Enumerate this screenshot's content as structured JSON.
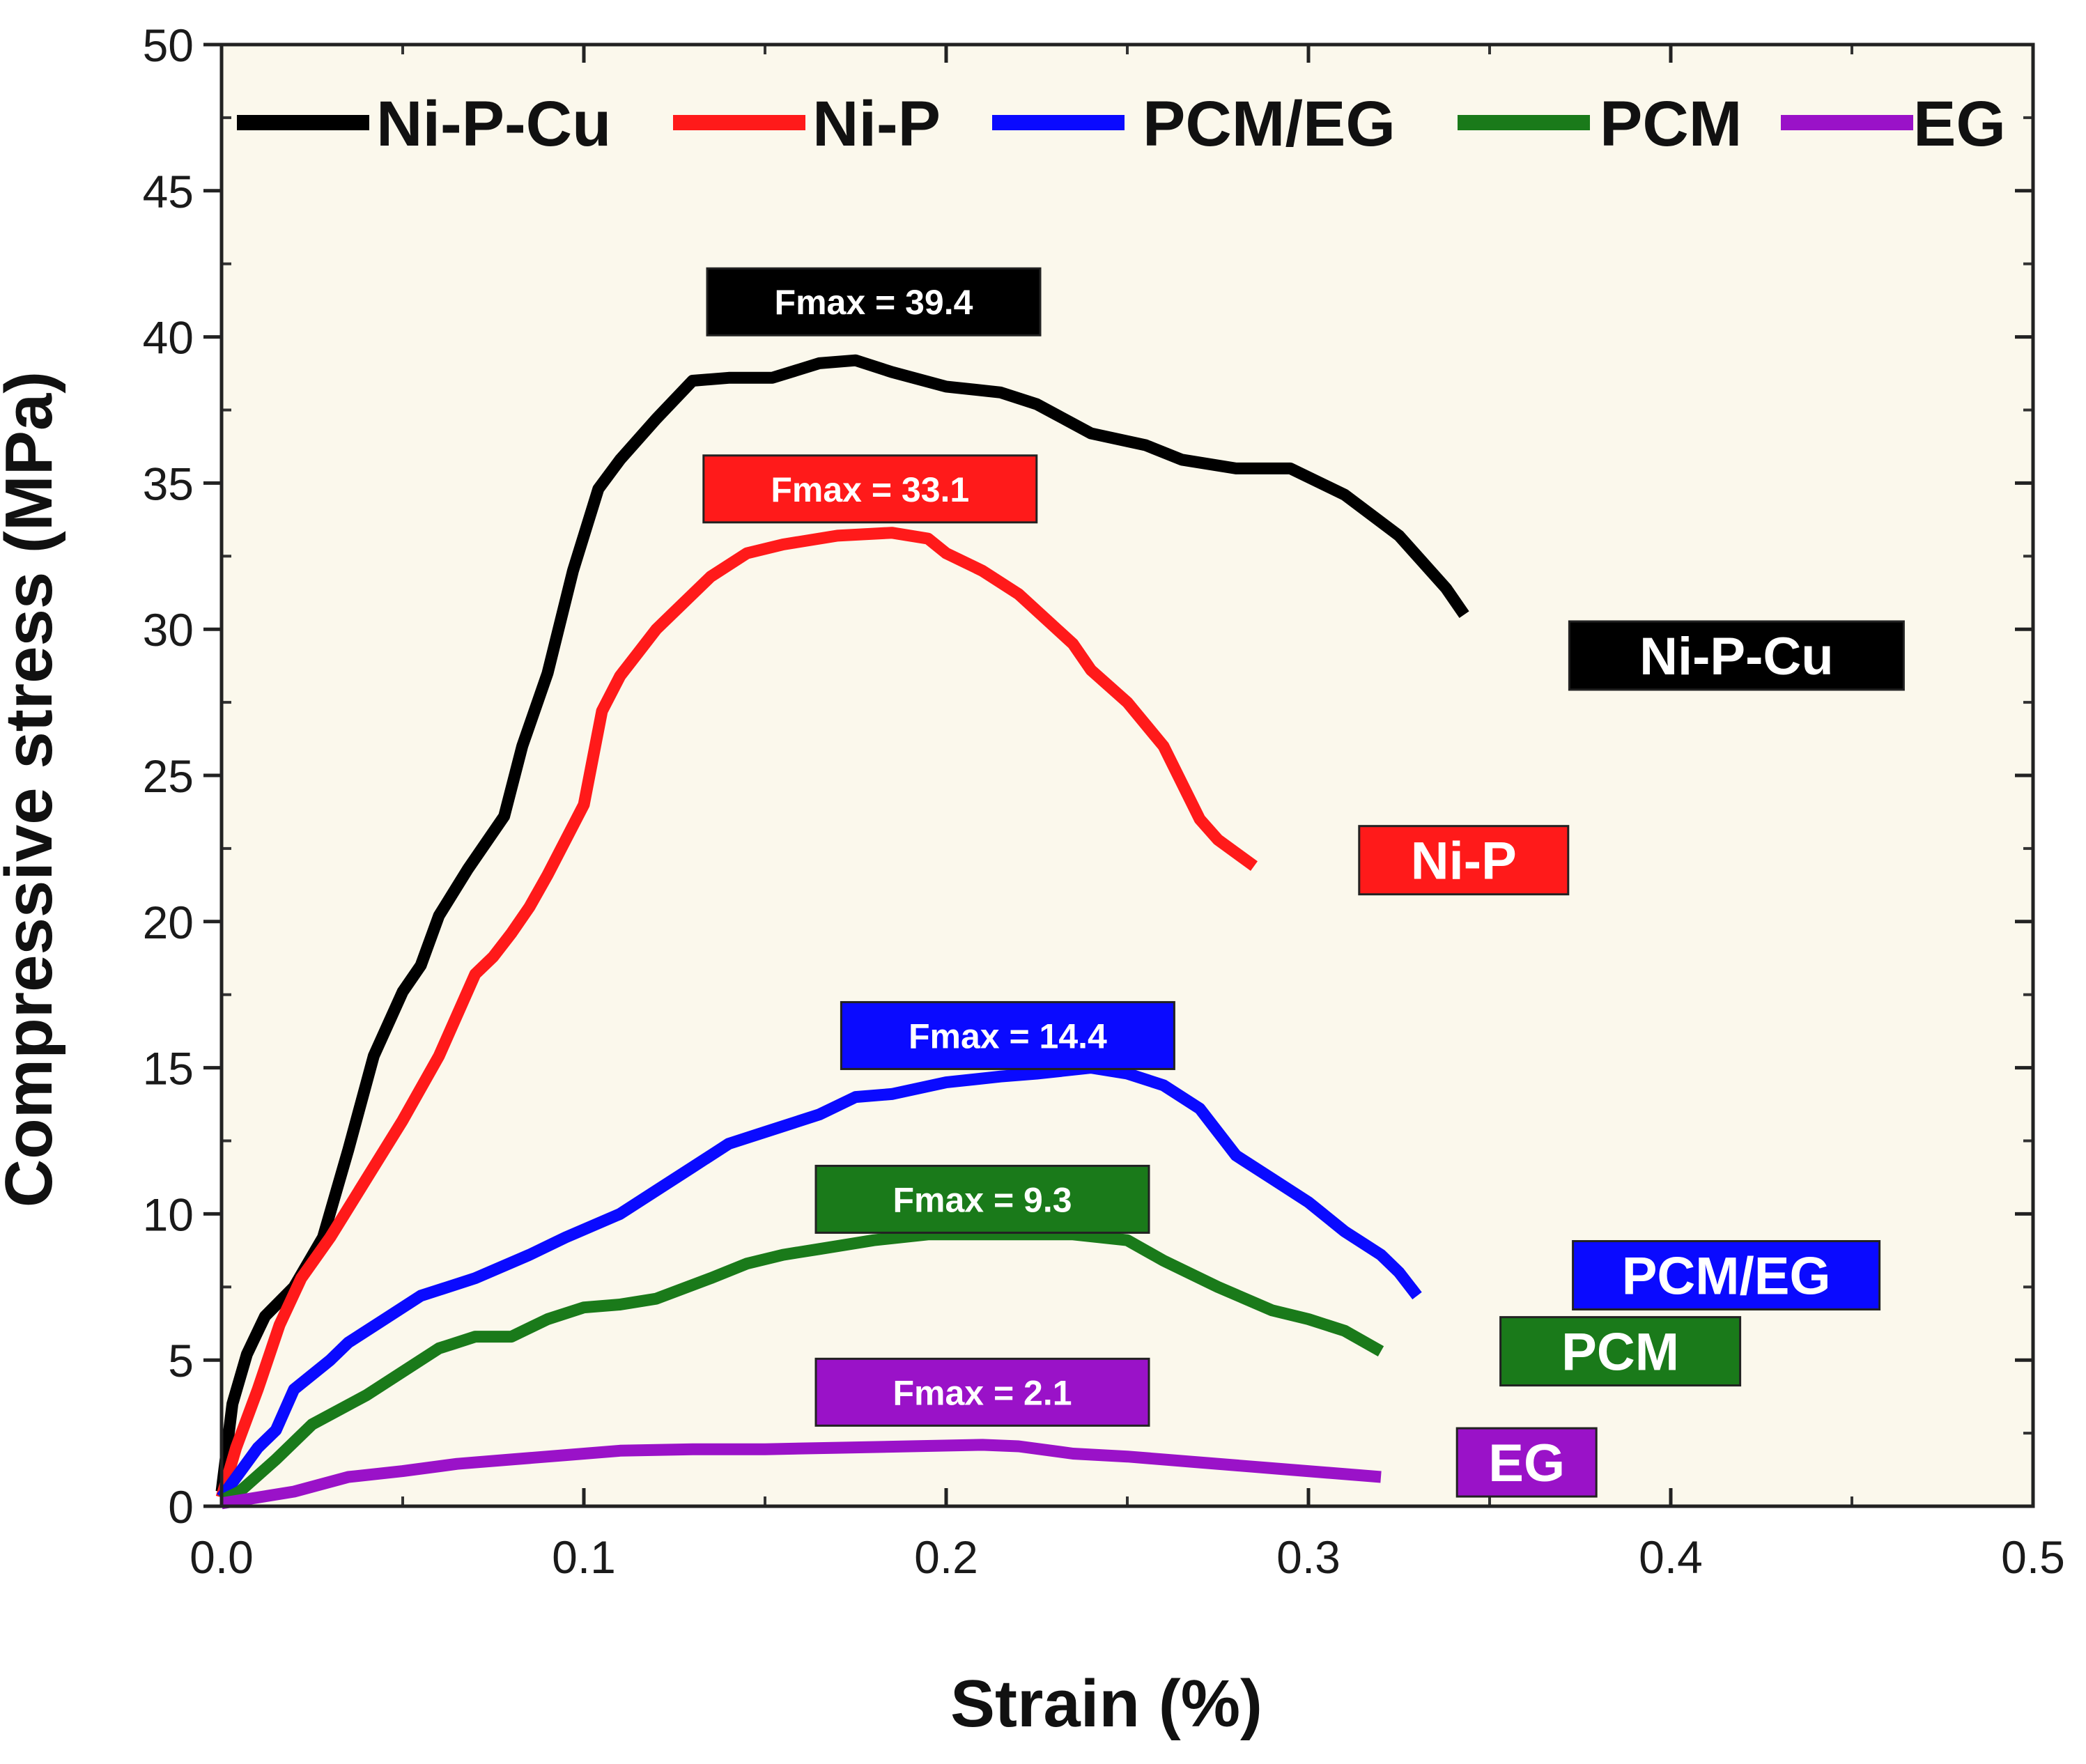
{
  "chart_data": {
    "type": "line",
    "title": "",
    "xlabel": "Strain (%)",
    "ylabel": "Compressive stress (MPa)",
    "xlim": [
      0,
      0.5
    ],
    "ylim": [
      0,
      50
    ],
    "xticks": [
      0,
      0.1,
      0.2,
      0.3,
      0.4,
      0.5
    ],
    "xtick_labels": [
      "0.0",
      "0.1",
      "0.2",
      "0.3",
      "0.4",
      "0.5"
    ],
    "yticks": [
      0,
      5,
      10,
      15,
      20,
      25,
      30,
      35,
      40,
      45,
      50
    ],
    "ytick_labels": [
      "0",
      "5",
      "10",
      "15",
      "20",
      "25",
      "30",
      "35",
      "40",
      "45",
      "50"
    ],
    "x_minor_step": 0.05,
    "y_minor_step": 2.5,
    "grid": false,
    "background": "#fbf8ec",
    "legend_position": "top",
    "series": [
      {
        "name": "Ni-P-Cu",
        "color": "#000000",
        "fmax_label": "Fmax = 39.4",
        "fmax_anchor": [
          0.18,
          41.2
        ],
        "end_label": "Ni-P-Cu",
        "end_anchor": [
          0.372,
          29.1
        ],
        "x": [
          0,
          0.003,
          0.007,
          0.012,
          0.02,
          0.028,
          0.035,
          0.042,
          0.05,
          0.055,
          0.06,
          0.068,
          0.078,
          0.083,
          0.09,
          0.097,
          0.104,
          0.11,
          0.12,
          0.13,
          0.14,
          0.152,
          0.165,
          0.175,
          0.185,
          0.2,
          0.215,
          0.225,
          0.24,
          0.255,
          0.265,
          0.28,
          0.295,
          0.31,
          0.325,
          0.338,
          0.343
        ],
        "y": [
          0.5,
          3.5,
          5.2,
          6.5,
          7.5,
          9.2,
          12.2,
          15.4,
          17.6,
          18.5,
          20.2,
          21.8,
          23.6,
          26,
          28.5,
          32,
          34.8,
          35.8,
          37.2,
          38.5,
          38.6,
          38.6,
          39.1,
          39.2,
          38.8,
          38.3,
          38.1,
          37.7,
          36.7,
          36.3,
          35.8,
          35.5,
          35.5,
          34.6,
          33.2,
          31.4,
          30.5
        ]
      },
      {
        "name": "Ni-P",
        "color": "#ff1a1a",
        "fmax_label": "Fmax = 33.1",
        "fmax_anchor": [
          0.179,
          34.8
        ],
        "end_label": "Ni-P",
        "end_anchor": [
          0.314,
          22.1
        ],
        "x": [
          0,
          0.004,
          0.01,
          0.016,
          0.022,
          0.03,
          0.04,
          0.05,
          0.06,
          0.07,
          0.075,
          0.08,
          0.085,
          0.09,
          0.1,
          0.105,
          0.11,
          0.115,
          0.12,
          0.125,
          0.135,
          0.145,
          0.155,
          0.17,
          0.185,
          0.195,
          0.2,
          0.21,
          0.22,
          0.235,
          0.24,
          0.25,
          0.26,
          0.27,
          0.275,
          0.285
        ],
        "y": [
          0.3,
          2,
          4,
          6.2,
          7.8,
          9.2,
          11.2,
          13.2,
          15.4,
          18.2,
          18.8,
          19.6,
          20.5,
          21.6,
          24,
          27.2,
          28.4,
          29.2,
          30,
          30.6,
          31.8,
          32.6,
          32.9,
          33.2,
          33.3,
          33.1,
          32.6,
          32,
          31.2,
          29.5,
          28.6,
          27.5,
          26,
          23.5,
          22.8,
          21.9
        ]
      },
      {
        "name": "PCM/EG",
        "color": "#0a0aff",
        "fmax_label": "Fmax = 14.4",
        "fmax_anchor": [
          0.217,
          16.1
        ],
        "end_label": "PCM/EG",
        "end_anchor": [
          0.373,
          7.9
        ],
        "x": [
          0,
          0.01,
          0.015,
          0.02,
          0.03,
          0.035,
          0.045,
          0.055,
          0.07,
          0.085,
          0.095,
          0.11,
          0.12,
          0.13,
          0.14,
          0.15,
          0.165,
          0.175,
          0.185,
          0.2,
          0.215,
          0.225,
          0.24,
          0.25,
          0.26,
          0.27,
          0.28,
          0.29,
          0.3,
          0.31,
          0.32,
          0.325,
          0.33
        ],
        "y": [
          0.3,
          2,
          2.6,
          4,
          5,
          5.6,
          6.4,
          7.2,
          7.8,
          8.6,
          9.2,
          10,
          10.8,
          11.6,
          12.4,
          12.8,
          13.4,
          14,
          14.1,
          14.5,
          14.7,
          14.8,
          15,
          14.8,
          14.4,
          13.6,
          12,
          11.2,
          10.4,
          9.4,
          8.6,
          8,
          7.2
        ]
      },
      {
        "name": "PCM",
        "color": "#1a7a1a",
        "fmax_label": "Fmax = 9.3",
        "fmax_anchor": [
          0.21,
          10.5
        ],
        "end_label": "PCM",
        "end_anchor": [
          0.353,
          5.3
        ],
        "x": [
          0,
          0.005,
          0.015,
          0.025,
          0.04,
          0.05,
          0.06,
          0.07,
          0.08,
          0.09,
          0.1,
          0.11,
          0.12,
          0.135,
          0.145,
          0.155,
          0.165,
          0.18,
          0.195,
          0.21,
          0.235,
          0.25,
          0.26,
          0.275,
          0.29,
          0.3,
          0.31,
          0.32
        ],
        "y": [
          0.2,
          0.5,
          1.6,
          2.8,
          3.8,
          4.6,
          5.4,
          5.8,
          5.8,
          6.4,
          6.8,
          6.9,
          7.1,
          7.8,
          8.3,
          8.6,
          8.8,
          9.1,
          9.3,
          9.3,
          9.3,
          9.1,
          8.4,
          7.5,
          6.7,
          6.4,
          6.0,
          5.3
        ]
      },
      {
        "name": "EG",
        "color": "#9a12c8",
        "fmax_label": "Fmax = 2.1",
        "fmax_anchor": [
          0.21,
          3.9
        ],
        "end_label": "EG",
        "end_anchor": [
          0.341,
          1.5
        ],
        "x": [
          0,
          0.02,
          0.035,
          0.05,
          0.065,
          0.08,
          0.095,
          0.11,
          0.13,
          0.15,
          0.17,
          0.19,
          0.21,
          0.22,
          0.235,
          0.25,
          0.27,
          0.29,
          0.32
        ],
        "y": [
          0.1,
          0.5,
          1,
          1.2,
          1.45,
          1.6,
          1.75,
          1.9,
          1.95,
          1.95,
          2.0,
          2.05,
          2.1,
          2.05,
          1.8,
          1.7,
          1.5,
          1.3,
          1.0
        ]
      }
    ]
  }
}
